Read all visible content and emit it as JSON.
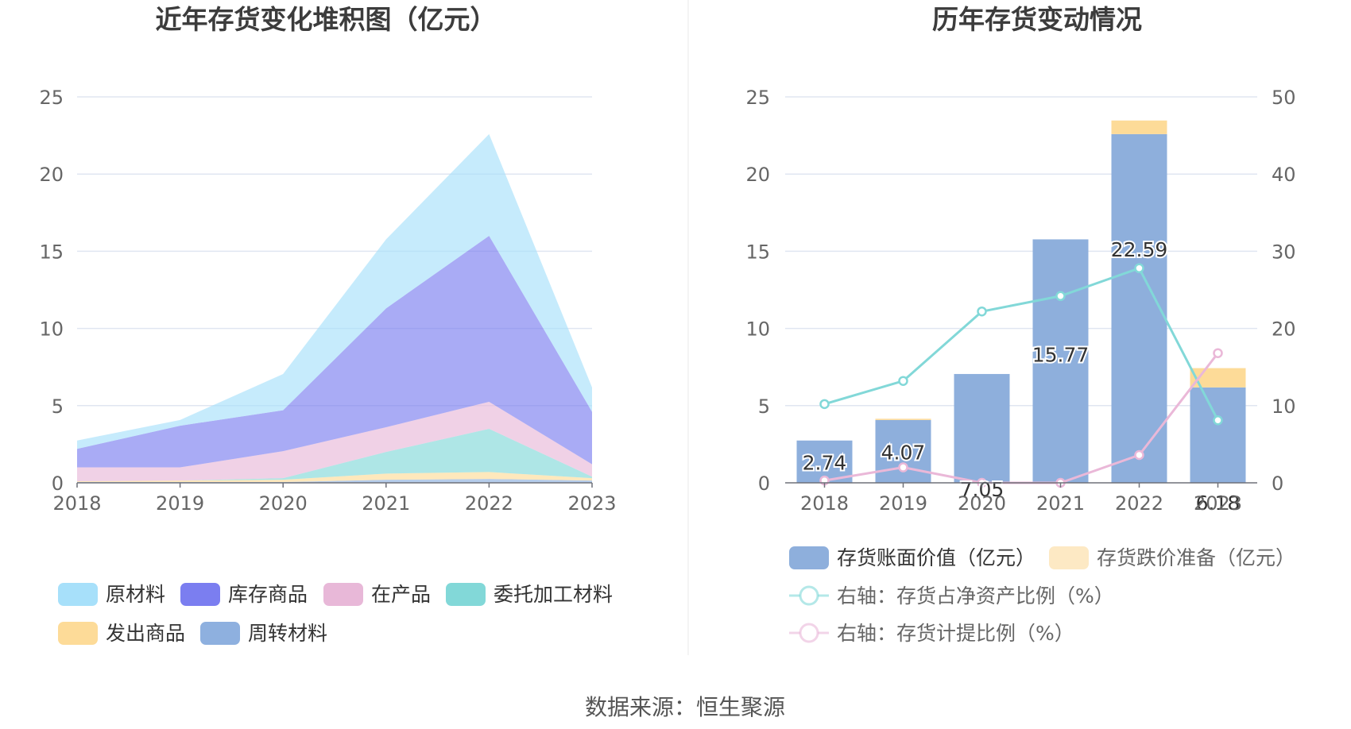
{
  "source_text": "数据来源：恒生聚源",
  "chart_data": [
    {
      "type": "area",
      "stacked": true,
      "title": "近年存货变化堆积图（亿元）",
      "x": [
        "2018",
        "2019",
        "2020",
        "2021",
        "2022",
        "2023"
      ],
      "ylim": [
        0,
        25
      ],
      "yticks": [
        "0",
        "5",
        "10",
        "15",
        "20",
        "25"
      ],
      "grid": true,
      "legend_position": "bottom",
      "series": [
        {
          "name": "周转材料",
          "color": "#8eb0df",
          "values": [
            0.05,
            0.05,
            0.05,
            0.2,
            0.25,
            0.15
          ]
        },
        {
          "name": "发出商品",
          "color": "#fddb98",
          "values": [
            0.05,
            0.1,
            0.15,
            0.4,
            0.45,
            0.15
          ]
        },
        {
          "name": "委托加工材料",
          "color": "#82d8d8",
          "values": [
            0,
            0,
            0.1,
            1.4,
            2.8,
            0.1
          ]
        },
        {
          "name": "在产品",
          "color": "#e8b8d8",
          "values": [
            0.9,
            0.85,
            1.75,
            1.6,
            1.75,
            0.8
          ]
        },
        {
          "name": "库存商品",
          "color": "#7b7ef0",
          "values": [
            1.2,
            2.7,
            2.65,
            7.7,
            10.75,
            3.4
          ]
        },
        {
          "name": "原材料",
          "color": "#a7e0fa",
          "values": [
            0.54,
            0.37,
            2.35,
            4.47,
            6.59,
            1.58
          ]
        }
      ],
      "legend_order": [
        "原材料",
        "库存商品",
        "在产品",
        "委托加工材料",
        "发出商品",
        "周转材料"
      ]
    },
    {
      "type": "bar",
      "title": "历年存货变动情况",
      "categories": [
        "2018",
        "2019",
        "2020",
        "2021",
        "2022",
        "2023"
      ],
      "ylim_left": [
        0,
        25
      ],
      "yticks_left": [
        "0",
        "5",
        "10",
        "15",
        "20",
        "25"
      ],
      "ylim_right": [
        0,
        50
      ],
      "yticks_right": [
        "0",
        "10",
        "20",
        "30",
        "40",
        "50"
      ],
      "grid": true,
      "legend_position": "bottom",
      "bars": [
        {
          "name": "存货账面价值（亿元）",
          "color": "#8eafdc",
          "values": [
            2.74,
            4.07,
            7.05,
            15.77,
            22.59,
            6.18
          ],
          "labels": [
            "2.74",
            "4.07",
            "7.05",
            "15.77",
            "22.59",
            "6.18"
          ]
        },
        {
          "name": "存货跌价准备（亿元）",
          "color": "#fddb98",
          "legend_color": "#fde9c4",
          "values": [
            0,
            0.08,
            0,
            0,
            0.88,
            1.25
          ]
        }
      ],
      "lines": [
        {
          "name": "右轴：存货占净资产比例（%）",
          "color": "#82d8d8",
          "axis": "right",
          "values": [
            10.2,
            13.2,
            22.2,
            24.2,
            27.8,
            8.1
          ]
        },
        {
          "name": "右轴：存货计提比例（%）",
          "color": "#eab8d8",
          "axis": "right",
          "values": [
            0.3,
            2.0,
            0,
            0,
            3.6,
            16.8
          ]
        }
      ]
    }
  ]
}
